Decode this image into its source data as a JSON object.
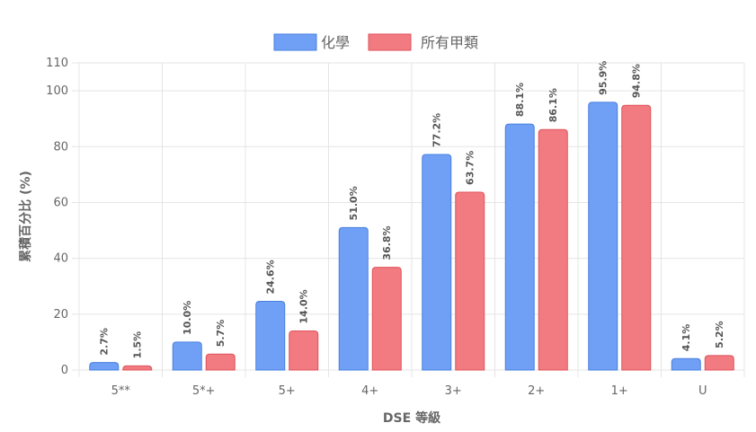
{
  "chart_data": {
    "type": "bar",
    "categories": [
      "5**",
      "5*+",
      "5+",
      "4+",
      "3+",
      "2+",
      "1+",
      "U"
    ],
    "series": [
      {
        "name": "化學",
        "values": [
          2.7,
          10.0,
          24.6,
          51.0,
          77.2,
          88.1,
          95.9,
          4.1
        ],
        "labels": [
          "2.7%",
          "10.0%",
          "24.6%",
          "51.0%",
          "77.2%",
          "88.1%",
          "95.9%",
          "4.1%"
        ],
        "color": "#6fa0f5",
        "border_color": "#4a7fe0"
      },
      {
        "name": "所有甲類",
        "values": [
          1.5,
          5.7,
          14.0,
          36.8,
          63.7,
          86.1,
          94.8,
          5.2
        ],
        "labels": [
          "1.5%",
          "5.7%",
          "14.0%",
          "36.8%",
          "63.7%",
          "86.1%",
          "94.8%",
          "5.2%"
        ],
        "color": "#f17b80",
        "border_color": "#e0525a"
      }
    ],
    "xlabel": "DSE 等級",
    "ylabel": "累積百分比 (%)",
    "ylim": [
      0,
      110
    ],
    "yticks": [
      "0",
      "20",
      "40",
      "60",
      "80",
      "100",
      "110"
    ],
    "grid": true,
    "legend_position": "top-center",
    "data_labels": "rotated-above-bars"
  }
}
